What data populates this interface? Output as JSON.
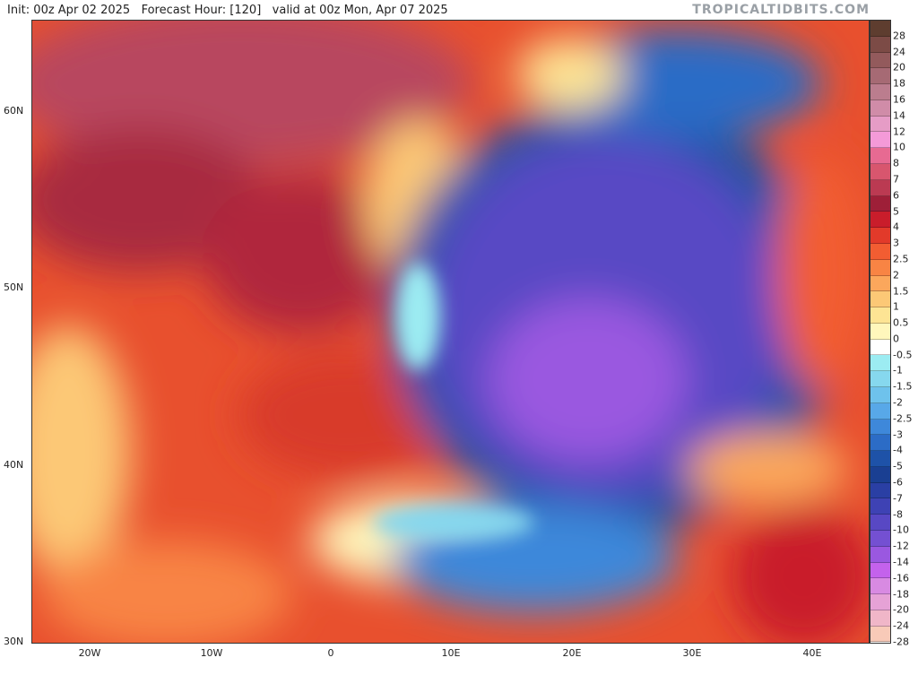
{
  "header": {
    "info": "Init: 00z Apr 02 2025   Forecast Hour: [120]   valid at 00z Mon, Apr 07 2025",
    "watermark": "TROPICALTIDBITS.COM"
  },
  "map": {
    "lat_labels": [
      "60N",
      "50N",
      "40N",
      "30N"
    ],
    "lon_labels": [
      "20W",
      "10W",
      "0",
      "10E",
      "20E",
      "30E",
      "40E"
    ]
  },
  "colorbar": {
    "labels": [
      "28",
      "24",
      "20",
      "18",
      "16",
      "14",
      "12",
      "10",
      "8",
      "7",
      "6",
      "5",
      "4",
      "3",
      "2.5",
      "2",
      "1.5",
      "1",
      "0.5",
      "0",
      "-0.5",
      "-1",
      "-1.5",
      "-2",
      "-2.5",
      "-3",
      "-4",
      "-5",
      "-6",
      "-7",
      "-8",
      "-10",
      "-12",
      "-14",
      "-16",
      "-18",
      "-20",
      "-24",
      "-28"
    ],
    "colors": [
      "#5e3d2f",
      "#7c4b46",
      "#935a5c",
      "#a66a74",
      "#bb7d8e",
      "#d08ca8",
      "#e69cc6",
      "#f49ad8",
      "#e76a92",
      "#d8566e",
      "#bb3a52",
      "#9e1f38",
      "#c91d2b",
      "#e23a2a",
      "#f25d32",
      "#f88444",
      "#fba75c",
      "#fcc876",
      "#fde494",
      "#fff7bc",
      "#ffffff",
      "#9cecf2",
      "#86d8ee",
      "#6ec2ec",
      "#58a8e8",
      "#3e88da",
      "#2c6cc6",
      "#1e52a8",
      "#1a3f92",
      "#2a3fa4",
      "#3e42b4",
      "#5848c4",
      "#7450d2",
      "#9a58e0",
      "#c462ec",
      "#d88ae2",
      "#e6a2d6",
      "#f0b6c8",
      "#f8cab8"
    ]
  }
}
